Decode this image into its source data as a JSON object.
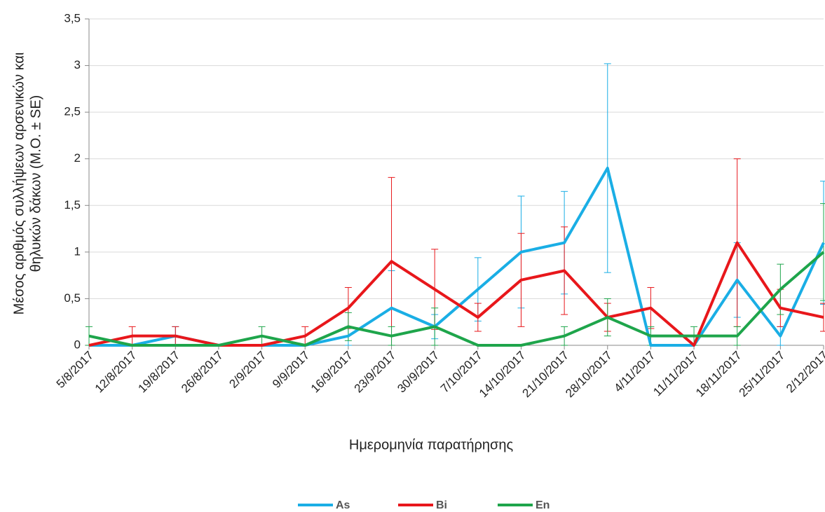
{
  "chart_data": {
    "type": "line",
    "ylabel": [
      "Μέσος αριθμός συλλήψεων αρσενικών και",
      "θηλυκών δάκων (Μ.Ο. ± SE)"
    ],
    "xlabel": "Ημερομηνία παρατήρησης",
    "categories": [
      "5/8/2017",
      "12/8/2017",
      "19/8/2017",
      "26/8/2017",
      "2/9/2017",
      "9/9/2017",
      "16/9/2017",
      "23/9/2017",
      "30/9/2017",
      "7/10/2017",
      "14/10/2017",
      "21/10/2017",
      "28/10/2017",
      "4/11/2017",
      "11/11/2017",
      "18/11/2017",
      "25/11/2017",
      "2/12/2017"
    ],
    "series": [
      {
        "name": "As",
        "color": "#1aaee5",
        "values": [
          0,
          0,
          0.1,
          0,
          0,
          0,
          0.1,
          0.4,
          0.2,
          0.6,
          1.0,
          1.1,
          1.9,
          0,
          0,
          0.7,
          0.1,
          1.1
        ],
        "errors": [
          0,
          0,
          0.1,
          0,
          0,
          0,
          0.1,
          0.4,
          0.13,
          0.34,
          0.6,
          0.55,
          1.12,
          0,
          0,
          0.4,
          0.1,
          0.66
        ]
      },
      {
        "name": "Bi",
        "color": "#e8171b",
        "values": [
          0,
          0.1,
          0.1,
          0,
          0,
          0.1,
          0.4,
          0.9,
          0.6,
          0.3,
          0.7,
          0.8,
          0.3,
          0.4,
          0,
          1.1,
          0.4,
          0.3
        ],
        "errors": [
          0,
          0.1,
          0.1,
          0,
          0,
          0.1,
          0.22,
          0.9,
          0.43,
          0.15,
          0.5,
          0.47,
          0.15,
          0.22,
          0,
          0.9,
          0.2,
          0.15
        ]
      },
      {
        "name": "En",
        "color": "#1ea54b",
        "values": [
          0.1,
          0,
          0,
          0,
          0.1,
          0,
          0.2,
          0.1,
          0.2,
          0,
          0,
          0.1,
          0.3,
          0.1,
          0.1,
          0.1,
          0.6,
          1.0
        ],
        "errors": [
          0.1,
          0,
          0,
          0,
          0.1,
          0,
          0.15,
          0.1,
          0.2,
          0,
          0,
          0.1,
          0.2,
          0.1,
          0.1,
          0.1,
          0.27,
          0.52
        ]
      }
    ],
    "ylim": [
      0,
      3.5
    ],
    "yticks": [
      0,
      {
        "value": 0.5,
        "label": "0,5"
      },
      1,
      {
        "value": 1.5,
        "label": "1,5"
      },
      2,
      {
        "value": 2.5,
        "label": "2,5"
      },
      3,
      {
        "value": 3.5,
        "label": "3,5"
      }
    ],
    "grid": true,
    "legend": "bottom"
  }
}
